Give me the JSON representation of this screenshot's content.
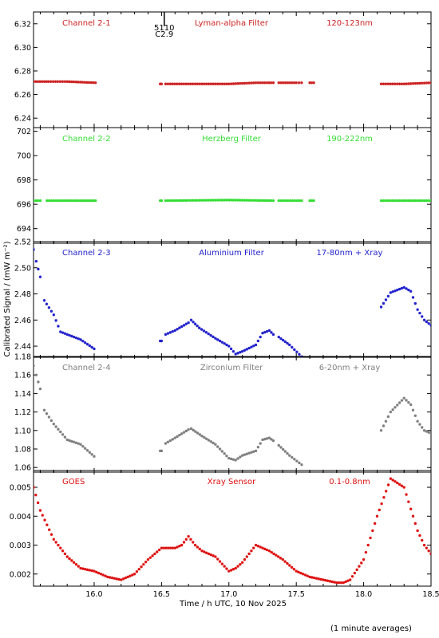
{
  "chart_data": {
    "type": "scatter",
    "xlabel": "Time / h UTC, 10 Nov 2025",
    "ylabel": "Calibrated Signal / (mW m⁻²)",
    "footnote": "(1 minute averages)",
    "xlim": [
      15.55,
      18.5
    ],
    "xticks": [
      "16.0",
      "16.5",
      "17.0",
      "17.5",
      "18.0",
      "18.5"
    ],
    "panels": [
      {
        "channel": "Channel 2-1",
        "filter": "Lyman-alpha Filter",
        "band": "120-123nm",
        "color": "#cc2222",
        "ylim": [
          6.232,
          6.33
        ],
        "yticks": [
          "6.24",
          "6.26",
          "6.28",
          "6.30",
          "6.32"
        ],
        "marker": {
          "x": 16.52,
          "line1": "5110",
          "line2": "C2.9"
        },
        "series": [
          {
            "x": [
              15.55,
              15.63,
              15.66,
              15.8,
              16.01
            ],
            "y": [
              6.271,
              6.271,
              6.271,
              6.271,
              6.27
            ]
          },
          {
            "x": [
              16.49,
              16.5
            ],
            "y": [
              6.269,
              6.269
            ]
          },
          {
            "x": [
              16.53,
              16.8,
              17.0,
              17.2,
              17.33
            ],
            "y": [
              6.269,
              6.269,
              6.269,
              6.27,
              6.27
            ]
          },
          {
            "x": [
              17.37,
              17.5,
              17.54
            ],
            "y": [
              6.27,
              6.27,
              6.27
            ]
          },
          {
            "x": [
              17.6,
              17.63
            ],
            "y": [
              6.27,
              6.27
            ]
          },
          {
            "x": [
              18.13,
              18.3,
              18.5
            ],
            "y": [
              6.269,
              6.269,
              6.27
            ]
          }
        ]
      },
      {
        "channel": "Channel 2-2",
        "filter": "Herzberg Filter",
        "band": "190-222nm",
        "color": "#33dd33",
        "ylim": [
          692.8,
          702.3
        ],
        "yticks": [
          "694",
          "696",
          "698",
          "700",
          "702"
        ],
        "series": [
          {
            "x": [
              15.55,
              15.6
            ],
            "y": [
              696.3,
              696.3
            ]
          },
          {
            "x": [
              15.65,
              15.8,
              16.01
            ],
            "y": [
              696.3,
              696.3,
              696.3
            ]
          },
          {
            "x": [
              16.49,
              16.5
            ],
            "y": [
              696.3,
              696.3
            ]
          },
          {
            "x": [
              16.53,
              17.0,
              17.33
            ],
            "y": [
              696.3,
              696.35,
              696.3
            ]
          },
          {
            "x": [
              17.37,
              17.54
            ],
            "y": [
              696.3,
              696.3
            ]
          },
          {
            "x": [
              17.6,
              17.63
            ],
            "y": [
              696.3,
              696.3
            ]
          },
          {
            "x": [
              18.13,
              18.3,
              18.5
            ],
            "y": [
              696.3,
              696.3,
              696.3
            ]
          }
        ]
      },
      {
        "channel": "Channel 2-3",
        "filter": "Aluminium Filter",
        "band": "17-80nm + Xray",
        "color": "#2222cc",
        "ylim": [
          2.4315,
          2.52
        ],
        "yticks": [
          "2.44",
          "2.46",
          "2.48",
          "2.50",
          "2.52"
        ],
        "series": [
          {
            "x": [
              15.55,
              15.57,
              15.6
            ],
            "y": [
              2.514,
              2.505,
              2.493
            ]
          },
          {
            "x": [
              15.63,
              15.7,
              15.75,
              15.8,
              15.9,
              16.0
            ],
            "y": [
              2.475,
              2.464,
              2.451,
              2.449,
              2.445,
              2.438
            ]
          },
          {
            "x": [
              16.49,
              16.5
            ],
            "y": [
              2.444,
              2.444
            ]
          },
          {
            "x": [
              16.53,
              16.6,
              16.7,
              16.72,
              16.78,
              16.9,
              17.0,
              17.05,
              17.1,
              17.2,
              17.25,
              17.3,
              17.33
            ],
            "y": [
              2.449,
              2.452,
              2.458,
              2.46,
              2.454,
              2.446,
              2.44,
              2.434,
              2.436,
              2.441,
              2.45,
              2.452,
              2.449
            ]
          },
          {
            "x": [
              17.37,
              17.45,
              17.54
            ],
            "y": [
              2.447,
              2.441,
              2.432
            ]
          },
          {
            "x": [
              17.6,
              17.63
            ],
            "y": [
              2.425,
              2.423
            ]
          },
          {
            "x": [
              18.13,
              18.2,
              18.3,
              18.35,
              18.4,
              18.45,
              18.5
            ],
            "y": [
              2.47,
              2.481,
              2.485,
              2.482,
              2.468,
              2.46,
              2.456
            ]
          }
        ]
      },
      {
        "channel": "Channel 2-4",
        "filter": "Zirconium Filter",
        "band": "6-20nm + Xray",
        "color": "#7f7f7f",
        "ylim": [
          1.055,
          1.18
        ],
        "yticks": [
          "1.06",
          "1.08",
          "1.10",
          "1.12",
          "1.14",
          "1.16",
          "1.18"
        ],
        "series": [
          {
            "x": [
              15.55,
              15.57,
              15.6
            ],
            "y": [
              1.17,
              1.16,
              1.145
            ]
          },
          {
            "x": [
              15.63,
              15.7,
              15.8,
              15.9,
              16.0
            ],
            "y": [
              1.122,
              1.107,
              1.09,
              1.085,
              1.072
            ]
          },
          {
            "x": [
              16.49,
              16.5
            ],
            "y": [
              1.078,
              1.078
            ]
          },
          {
            "x": [
              16.53,
              16.6,
              16.7,
              16.72,
              16.8,
              16.9,
              17.0,
              17.05,
              17.1,
              17.2,
              17.25,
              17.3,
              17.33
            ],
            "y": [
              1.086,
              1.092,
              1.101,
              1.102,
              1.094,
              1.085,
              1.07,
              1.068,
              1.073,
              1.078,
              1.09,
              1.092,
              1.089
            ]
          },
          {
            "x": [
              17.37,
              17.45,
              17.54
            ],
            "y": [
              1.084,
              1.073,
              1.063
            ]
          },
          {
            "x": [
              17.6,
              17.63
            ],
            "y": [
              1.053,
              1.052
            ]
          },
          {
            "x": [
              18.13,
              18.2,
              18.3,
              18.35,
              18.4,
              18.45,
              18.5
            ],
            "y": [
              1.1,
              1.12,
              1.135,
              1.128,
              1.11,
              1.1,
              1.097
            ]
          }
        ]
      },
      {
        "channel": "GOES",
        "filter": "Xray Sensor",
        "band": "0.1-0.8nm",
        "color": "#dd1111",
        "ylim": [
          0.00158,
          0.00558
        ],
        "yticks": [
          "0.002",
          "0.003",
          "0.004",
          "0.005"
        ],
        "series": [
          {
            "x": [
              15.55,
              15.6,
              15.7,
              15.8,
              15.9,
              16.0,
              16.1,
              16.2,
              16.3,
              16.4,
              16.5,
              16.6,
              16.65,
              16.7,
              16.75,
              16.8,
              16.9,
              17.0,
              17.05,
              17.1,
              17.2,
              17.25,
              17.3,
              17.4,
              17.5,
              17.6,
              17.7,
              17.8,
              17.85,
              17.9,
              18.0,
              18.1,
              18.2,
              18.3,
              18.4,
              18.45,
              18.5
            ],
            "y": [
              0.005,
              0.0042,
              0.0032,
              0.0026,
              0.0022,
              0.0021,
              0.0019,
              0.0018,
              0.002,
              0.0025,
              0.0029,
              0.0029,
              0.003,
              0.0033,
              0.003,
              0.0028,
              0.0026,
              0.0021,
              0.0022,
              0.0024,
              0.003,
              0.0029,
              0.0028,
              0.0025,
              0.0021,
              0.0019,
              0.0018,
              0.0017,
              0.0017,
              0.0018,
              0.0025,
              0.004,
              0.0053,
              0.005,
              0.0035,
              0.003,
              0.0027
            ]
          }
        ]
      }
    ]
  }
}
